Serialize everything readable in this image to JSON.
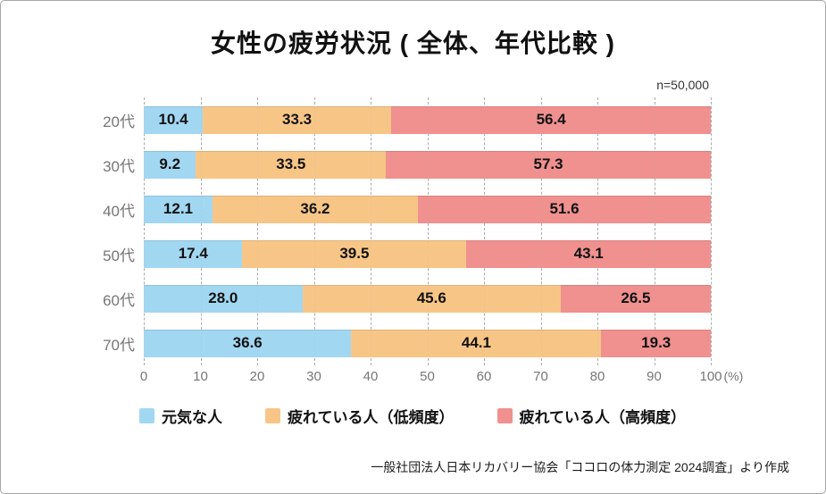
{
  "header": {
    "title": "女性の疲労状況 ( 全体、年代比較 )",
    "sample_size": "n=50,000"
  },
  "footer": {
    "source": "一般社団法人日本リカバリー協会「ココロの体力測定 2024調査」より作成"
  },
  "colors": {
    "series_blue": "#A2D7F2",
    "series_orange": "#F7C687",
    "series_red": "#F0918F",
    "gridline": "#ACACAC",
    "axis_text": "#767676"
  },
  "chart_data": {
    "type": "bar",
    "stacked": true,
    "orientation": "horizontal",
    "title": "女性の疲労状況 ( 全体、年代比較 )",
    "categories": [
      "20代",
      "30代",
      "40代",
      "50代",
      "60代",
      "70代"
    ],
    "series": [
      {
        "name": "元気な人",
        "color": "#A2D7F2",
        "values": [
          10.4,
          9.2,
          12.1,
          17.4,
          28.0,
          36.6
        ]
      },
      {
        "name": "疲れている人（低頻度）",
        "color": "#F7C687",
        "values": [
          33.3,
          33.5,
          36.2,
          39.5,
          45.6,
          44.1
        ]
      },
      {
        "name": "疲れている人（高頻度）",
        "color": "#F0918F",
        "values": [
          56.4,
          57.3,
          51.6,
          43.1,
          26.5,
          19.3
        ]
      }
    ],
    "xlim": [
      0,
      100
    ],
    "x_ticks": [
      0,
      10,
      20,
      30,
      40,
      50,
      60,
      70,
      80,
      90,
      100
    ],
    "x_unit": "(%)",
    "grid": "dashed-vertical-10pct",
    "legend_position": "bottom",
    "value_label_format": "one-decimal"
  }
}
